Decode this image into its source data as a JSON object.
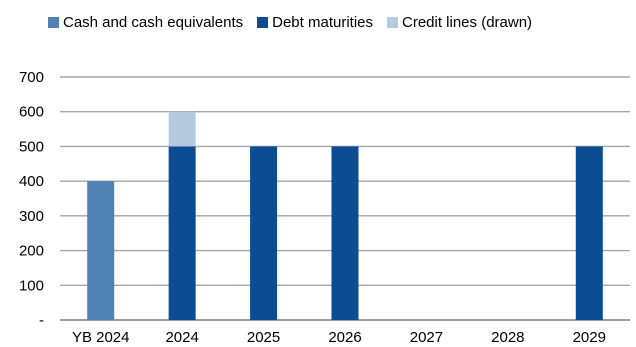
{
  "chart_data": {
    "type": "bar",
    "stacked": true,
    "categories": [
      "YB 2024",
      "2024",
      "2025",
      "2026",
      "2027",
      "2028",
      "2029"
    ],
    "series": [
      {
        "name": "Cash and cash equivalents",
        "color": "#4F81B4",
        "values": [
          400,
          0,
          0,
          0,
          0,
          0,
          0
        ]
      },
      {
        "name": "Debt maturities",
        "color": "#0B4C92",
        "values": [
          0,
          500,
          500,
          500,
          0,
          0,
          500
        ]
      },
      {
        "name": "Credit lines (drawn)",
        "color": "#B5CADF",
        "values": [
          0,
          100,
          0,
          0,
          0,
          0,
          0
        ]
      }
    ],
    "y_ticks": [
      "-",
      "100",
      "200",
      "300",
      "400",
      "500",
      "600",
      "700"
    ],
    "ylim": [
      0,
      700
    ],
    "grid": true,
    "legend_position": "top",
    "title": "",
    "xlabel": "",
    "ylabel": ""
  }
}
